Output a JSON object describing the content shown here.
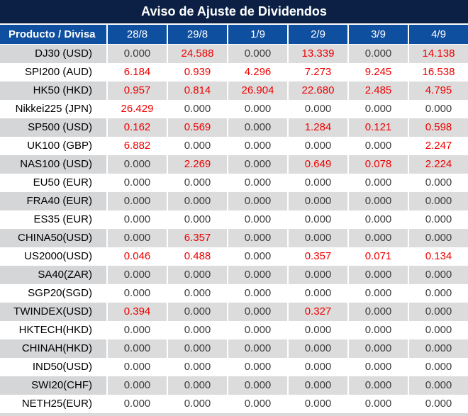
{
  "title": "Aviso de Ajuste de Dividendos",
  "colors": {
    "title_bg": "#0B2044",
    "header_bg": "#0F4FA0",
    "row_alt_bg": "#DCDCDC",
    "row_alt_product_bg": "#D4D6D8",
    "value_red": "#EF0000",
    "value_zero": "#3C3C3C",
    "bottom_strip": "#D9D9D9"
  },
  "table": {
    "product_header": "Producto / Divisa",
    "date_headers": [
      "28/8",
      "29/8",
      "1/9",
      "2/9",
      "3/9",
      "4/9"
    ],
    "rows": [
      {
        "product": "DJ30 (USD)",
        "values": [
          "0.000",
          "24.588",
          "0.000",
          "13.339",
          "0.000",
          "14.138"
        ]
      },
      {
        "product": "SPI200 (AUD)",
        "values": [
          "6.184",
          "0.939",
          "4.296",
          "7.273",
          "9.245",
          "16.538"
        ]
      },
      {
        "product": "HK50 (HKD)",
        "values": [
          "0.957",
          "0.814",
          "26.904",
          "22.680",
          "2.485",
          "4.795"
        ]
      },
      {
        "product": "Nikkei225 (JPN)",
        "values": [
          "26.429",
          "0.000",
          "0.000",
          "0.000",
          "0.000",
          "0.000"
        ]
      },
      {
        "product": "SP500 (USD)",
        "values": [
          "0.162",
          "0.569",
          "0.000",
          "1.284",
          "0.121",
          "0.598"
        ]
      },
      {
        "product": "UK100 (GBP)",
        "values": [
          "6.882",
          "0.000",
          "0.000",
          "0.000",
          "0.000",
          "2.247"
        ]
      },
      {
        "product": "NAS100 (USD)",
        "values": [
          "0.000",
          "2.269",
          "0.000",
          "0.649",
          "0.078",
          "2.224"
        ]
      },
      {
        "product": "EU50 (EUR)",
        "values": [
          "0.000",
          "0.000",
          "0.000",
          "0.000",
          "0.000",
          "0.000"
        ]
      },
      {
        "product": "FRA40 (EUR)",
        "values": [
          "0.000",
          "0.000",
          "0.000",
          "0.000",
          "0.000",
          "0.000"
        ]
      },
      {
        "product": "ES35 (EUR)",
        "values": [
          "0.000",
          "0.000",
          "0.000",
          "0.000",
          "0.000",
          "0.000"
        ]
      },
      {
        "product": "CHINA50(USD)",
        "values": [
          "0.000",
          "6.357",
          "0.000",
          "0.000",
          "0.000",
          "0.000"
        ]
      },
      {
        "product": "US2000(USD)",
        "values": [
          "0.046",
          "0.488",
          "0.000",
          "0.357",
          "0.071",
          "0.134"
        ]
      },
      {
        "product": "SA40(ZAR)",
        "values": [
          "0.000",
          "0.000",
          "0.000",
          "0.000",
          "0.000",
          "0.000"
        ]
      },
      {
        "product": "SGP20(SGD)",
        "values": [
          "0.000",
          "0.000",
          "0.000",
          "0.000",
          "0.000",
          "0.000"
        ]
      },
      {
        "product": "TWINDEX(USD)",
        "values": [
          "0.394",
          "0.000",
          "0.000",
          "0.327",
          "0.000",
          "0.000"
        ]
      },
      {
        "product": "HKTECH(HKD)",
        "values": [
          "0.000",
          "0.000",
          "0.000",
          "0.000",
          "0.000",
          "0.000"
        ]
      },
      {
        "product": "CHINAH(HKD)",
        "values": [
          "0.000",
          "0.000",
          "0.000",
          "0.000",
          "0.000",
          "0.000"
        ]
      },
      {
        "product": "IND50(USD)",
        "values": [
          "0.000",
          "0.000",
          "0.000",
          "0.000",
          "0.000",
          "0.000"
        ]
      },
      {
        "product": "SWI20(CHF)",
        "values": [
          "0.000",
          "0.000",
          "0.000",
          "0.000",
          "0.000",
          "0.000"
        ]
      },
      {
        "product": "NETH25(EUR)",
        "values": [
          "0.000",
          "0.000",
          "0.000",
          "0.000",
          "0.000",
          "0.000"
        ]
      }
    ]
  }
}
